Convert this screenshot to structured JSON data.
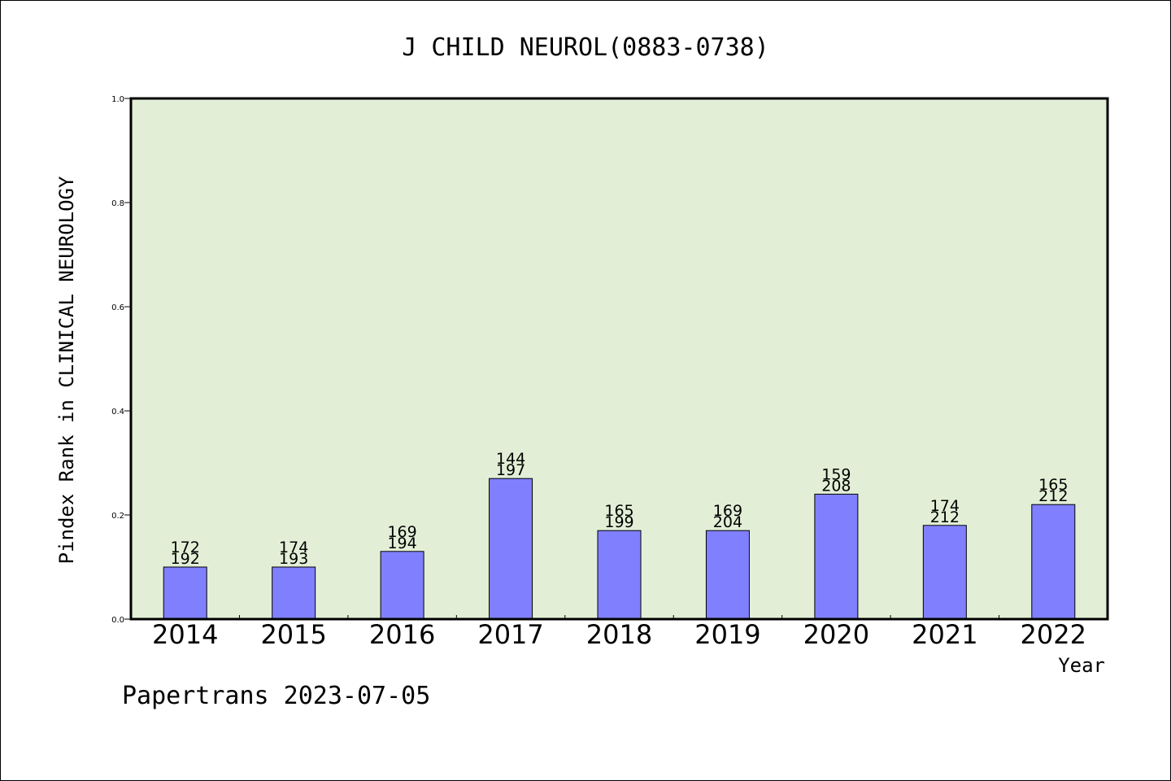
{
  "chart_data": {
    "type": "bar",
    "title": "J CHILD NEUROL(0883-0738)",
    "xlabel": "Year",
    "ylabel": "Pindex Rank in CLINICAL NEUROLOGY",
    "footer": "Papertrans 2023-07-05",
    "categories": [
      "2014",
      "2015",
      "2016",
      "2017",
      "2018",
      "2019",
      "2020",
      "2021",
      "2022"
    ],
    "values": [
      0.1,
      0.1,
      0.13,
      0.27,
      0.17,
      0.17,
      0.24,
      0.18,
      0.22
    ],
    "rank_labels": [
      "172",
      "174",
      "169",
      "144",
      "165",
      "169",
      "159",
      "174",
      "165"
    ],
    "total_labels": [
      "192",
      "193",
      "194",
      "197",
      "199",
      "204",
      "208",
      "212",
      "212"
    ],
    "ylim": [
      0,
      1.0
    ],
    "yticks": [
      "0.0",
      "0.2",
      "0.4",
      "0.6",
      "0.8",
      "1.0"
    ],
    "grid": false,
    "colors": {
      "plot_background": "#e2efd6",
      "bar_fill": "#8080ff",
      "bar_stroke": "#000000",
      "axis": "#000000"
    }
  }
}
